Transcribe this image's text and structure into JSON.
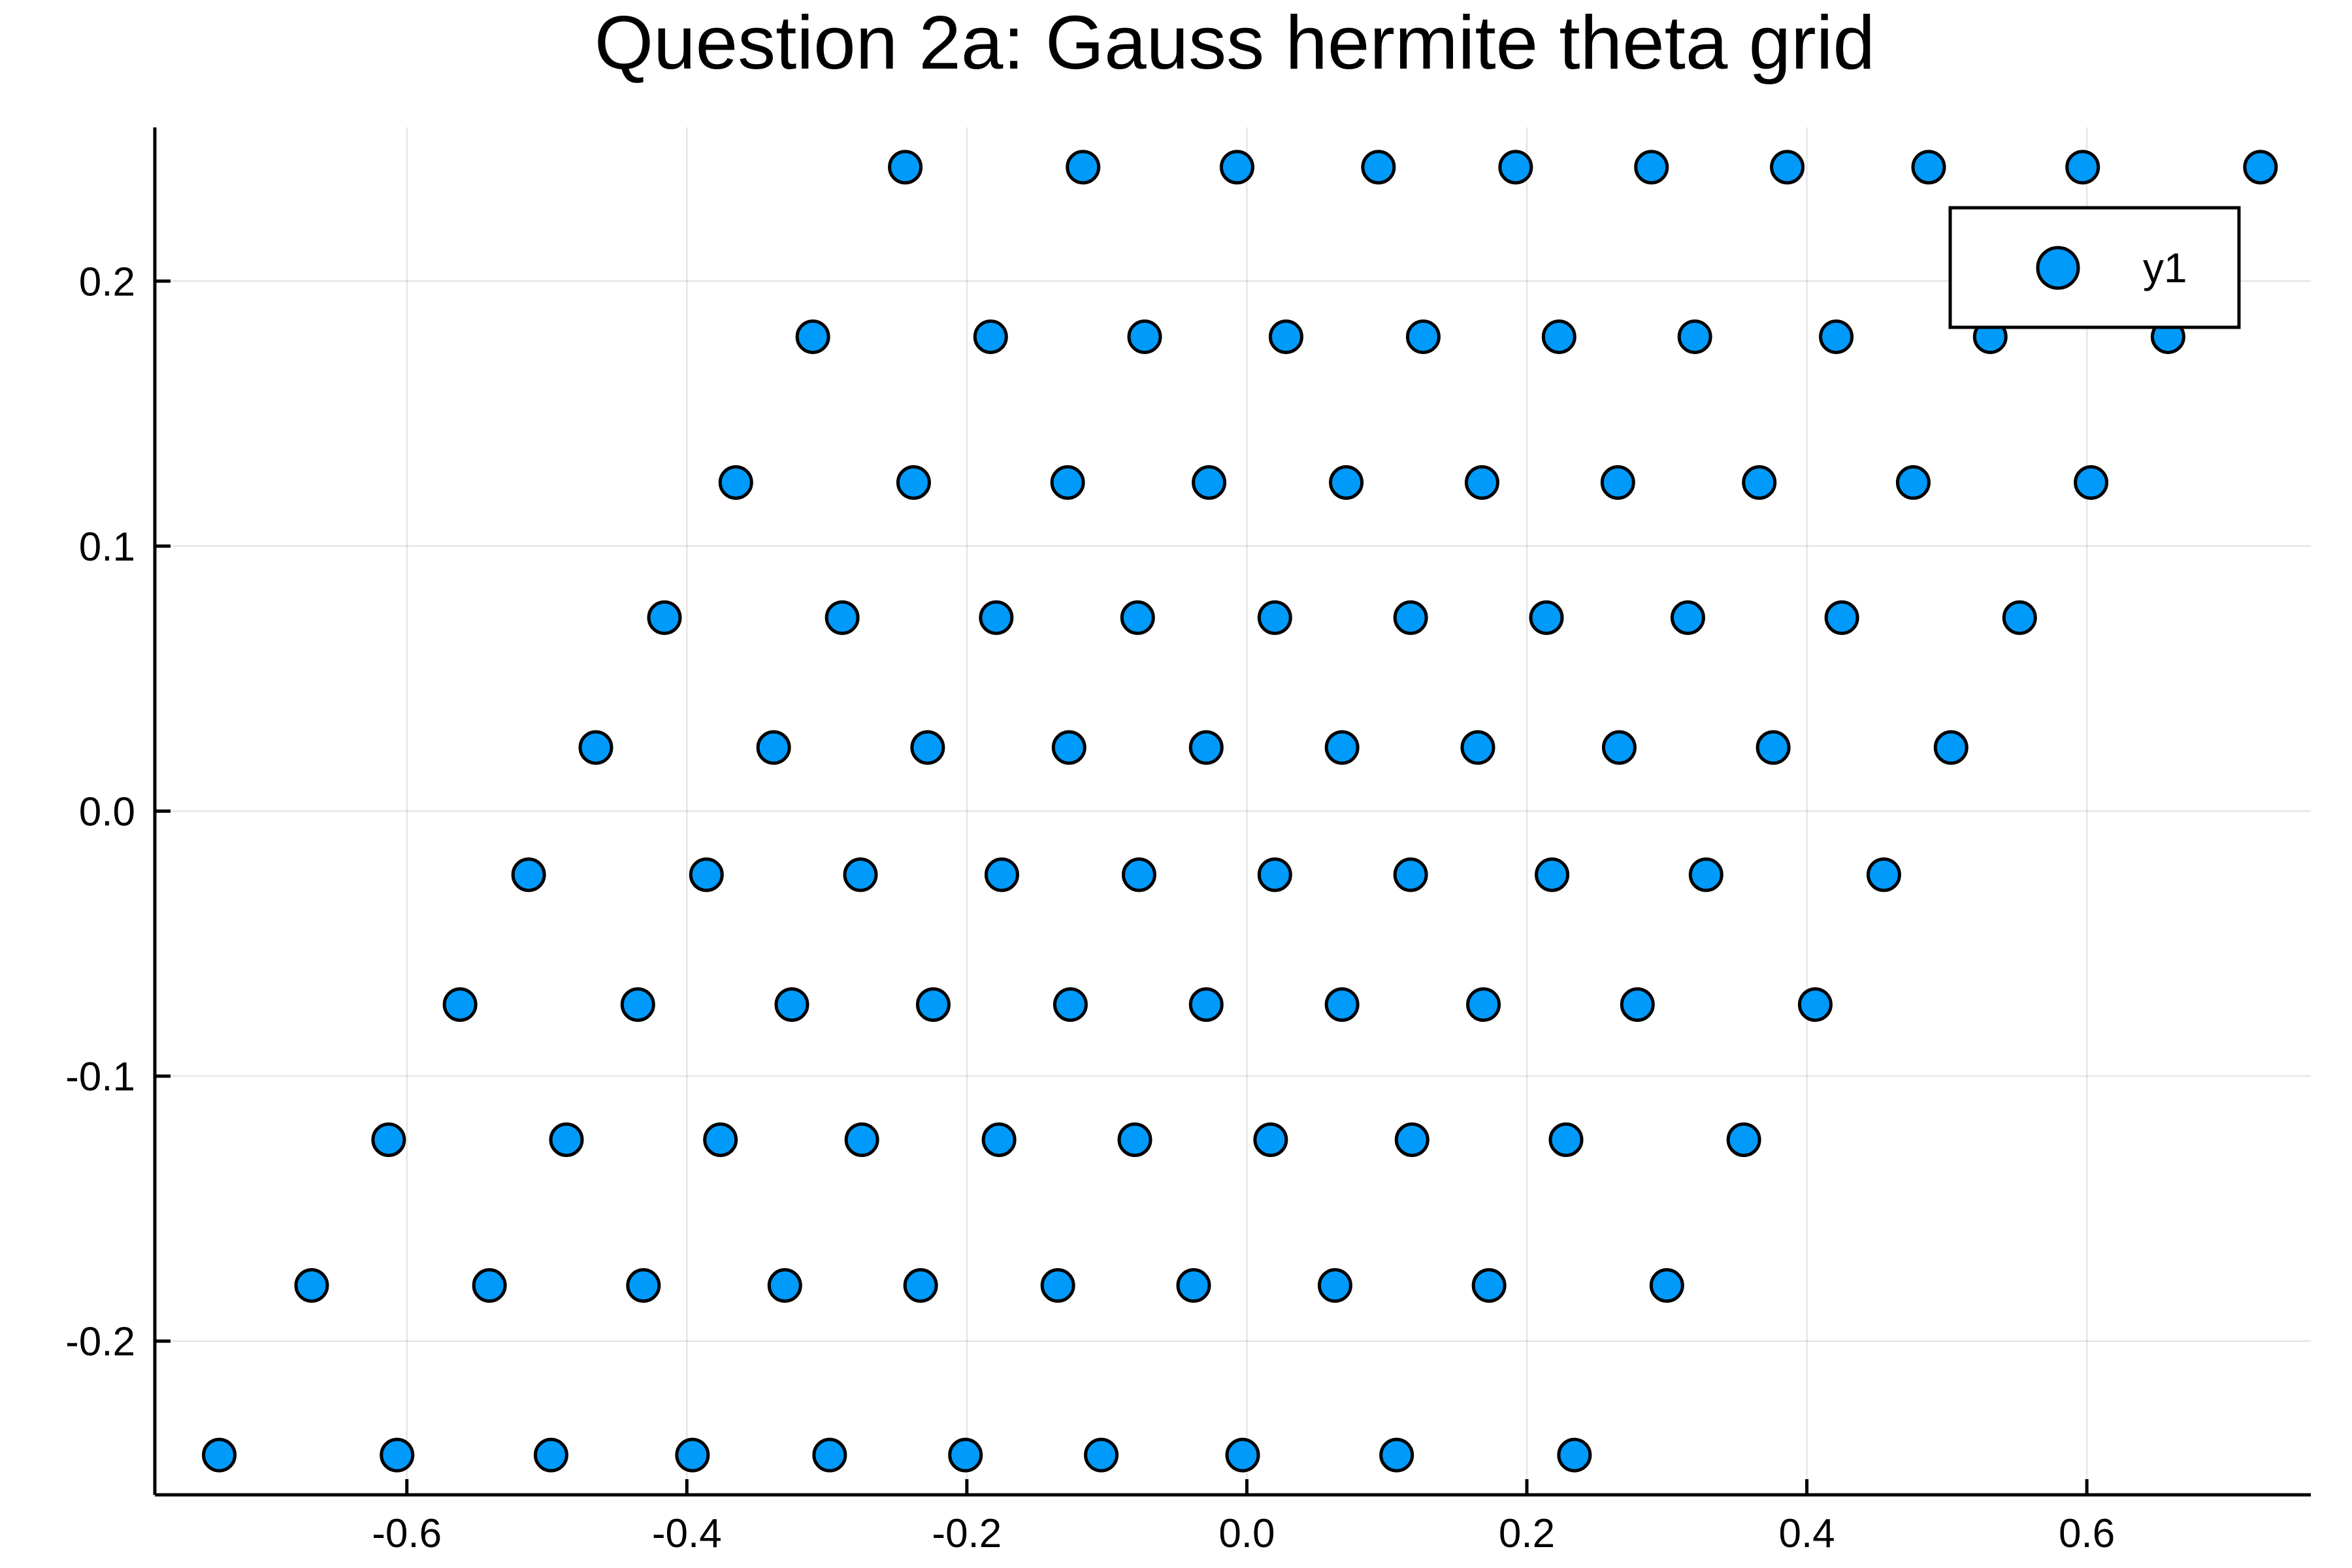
{
  "chart_data": {
    "type": "scatter",
    "title": "Question 2a: Gauss hermite theta grid",
    "xlabel": "",
    "ylabel": "",
    "xlim": [
      -0.78,
      0.76
    ],
    "ylim": [
      -0.258,
      0.258
    ],
    "xticks": [
      -0.6,
      -0.4,
      -0.2,
      0.0,
      0.2,
      0.4,
      0.6
    ],
    "xtick_labels": [
      "-0.6",
      "-0.4",
      "-0.2",
      "0.0",
      "0.2",
      "0.4",
      "0.6"
    ],
    "yticks": [
      -0.2,
      -0.1,
      0.0,
      0.1,
      0.2
    ],
    "ytick_labels": [
      "-0.2",
      "-0.1",
      "0.0",
      "0.1",
      "0.2"
    ],
    "grid": true,
    "legend_position": "top-right",
    "colors": {
      "marker": "#009AFA",
      "marker_edge": "#000000"
    },
    "series": [
      {
        "name": "y1",
        "points": [
          {
            "x": -0.734,
            "y": -0.243
          },
          {
            "x": -0.607,
            "y": -0.243
          },
          {
            "x": -0.497,
            "y": -0.243
          },
          {
            "x": -0.396,
            "y": -0.243
          },
          {
            "x": -0.298,
            "y": -0.243
          },
          {
            "x": -0.201,
            "y": -0.243
          },
          {
            "x": -0.104,
            "y": -0.243
          },
          {
            "x": -0.003,
            "y": -0.243
          },
          {
            "x": 0.107,
            "y": -0.243
          },
          {
            "x": 0.234,
            "y": -0.243
          },
          {
            "x": -0.668,
            "y": -0.179
          },
          {
            "x": -0.541,
            "y": -0.179
          },
          {
            "x": -0.431,
            "y": -0.179
          },
          {
            "x": -0.33,
            "y": -0.179
          },
          {
            "x": -0.233,
            "y": -0.179
          },
          {
            "x": -0.135,
            "y": -0.179
          },
          {
            "x": -0.038,
            "y": -0.179
          },
          {
            "x": 0.063,
            "y": -0.179
          },
          {
            "x": 0.173,
            "y": -0.179
          },
          {
            "x": 0.3,
            "y": -0.179
          },
          {
            "x": -0.613,
            "y": -0.124
          },
          {
            "x": -0.486,
            "y": -0.124
          },
          {
            "x": -0.376,
            "y": -0.124
          },
          {
            "x": -0.275,
            "y": -0.124
          },
          {
            "x": -0.177,
            "y": -0.124
          },
          {
            "x": -0.08,
            "y": -0.124
          },
          {
            "x": 0.017,
            "y": -0.124
          },
          {
            "x": 0.118,
            "y": -0.124
          },
          {
            "x": 0.228,
            "y": -0.124
          },
          {
            "x": 0.355,
            "y": -0.124
          },
          {
            "x": -0.562,
            "y": -0.073
          },
          {
            "x": -0.435,
            "y": -0.073
          },
          {
            "x": -0.325,
            "y": -0.073
          },
          {
            "x": -0.224,
            "y": -0.073
          },
          {
            "x": -0.126,
            "y": -0.073
          },
          {
            "x": -0.029,
            "y": -0.073
          },
          {
            "x": 0.068,
            "y": -0.073
          },
          {
            "x": 0.169,
            "y": -0.073
          },
          {
            "x": 0.279,
            "y": -0.073
          },
          {
            "x": 0.406,
            "y": -0.073
          },
          {
            "x": -0.513,
            "y": -0.024
          },
          {
            "x": -0.386,
            "y": -0.024
          },
          {
            "x": -0.276,
            "y": -0.024
          },
          {
            "x": -0.175,
            "y": -0.024
          },
          {
            "x": -0.077,
            "y": -0.024
          },
          {
            "x": 0.02,
            "y": -0.024
          },
          {
            "x": 0.117,
            "y": -0.024
          },
          {
            "x": 0.218,
            "y": -0.024
          },
          {
            "x": 0.328,
            "y": -0.024
          },
          {
            "x": 0.455,
            "y": -0.024
          },
          {
            "x": -0.465,
            "y": 0.024
          },
          {
            "x": -0.338,
            "y": 0.024
          },
          {
            "x": -0.228,
            "y": 0.024
          },
          {
            "x": -0.127,
            "y": 0.024
          },
          {
            "x": -0.029,
            "y": 0.024
          },
          {
            "x": 0.068,
            "y": 0.024
          },
          {
            "x": 0.165,
            "y": 0.024
          },
          {
            "x": 0.266,
            "y": 0.024
          },
          {
            "x": 0.376,
            "y": 0.024
          },
          {
            "x": 0.503,
            "y": 0.024
          },
          {
            "x": -0.416,
            "y": 0.073
          },
          {
            "x": -0.289,
            "y": 0.073
          },
          {
            "x": -0.179,
            "y": 0.073
          },
          {
            "x": -0.078,
            "y": 0.073
          },
          {
            "x": 0.02,
            "y": 0.073
          },
          {
            "x": 0.117,
            "y": 0.073
          },
          {
            "x": 0.214,
            "y": 0.073
          },
          {
            "x": 0.315,
            "y": 0.073
          },
          {
            "x": 0.425,
            "y": 0.073
          },
          {
            "x": 0.552,
            "y": 0.073
          },
          {
            "x": -0.365,
            "y": 0.124
          },
          {
            "x": -0.238,
            "y": 0.124
          },
          {
            "x": -0.128,
            "y": 0.124
          },
          {
            "x": -0.027,
            "y": 0.124
          },
          {
            "x": 0.071,
            "y": 0.124
          },
          {
            "x": 0.168,
            "y": 0.124
          },
          {
            "x": 0.265,
            "y": 0.124
          },
          {
            "x": 0.366,
            "y": 0.124
          },
          {
            "x": 0.476,
            "y": 0.124
          },
          {
            "x": 0.603,
            "y": 0.124
          },
          {
            "x": -0.31,
            "y": 0.179
          },
          {
            "x": -0.183,
            "y": 0.179
          },
          {
            "x": -0.073,
            "y": 0.179
          },
          {
            "x": 0.028,
            "y": 0.179
          },
          {
            "x": 0.126,
            "y": 0.179
          },
          {
            "x": 0.223,
            "y": 0.179
          },
          {
            "x": 0.32,
            "y": 0.179
          },
          {
            "x": 0.421,
            "y": 0.179
          },
          {
            "x": 0.531,
            "y": 0.179
          },
          {
            "x": 0.658,
            "y": 0.179
          },
          {
            "x": -0.244,
            "y": 0.243
          },
          {
            "x": -0.117,
            "y": 0.243
          },
          {
            "x": -0.007,
            "y": 0.243
          },
          {
            "x": 0.094,
            "y": 0.243
          },
          {
            "x": 0.192,
            "y": 0.243
          },
          {
            "x": 0.289,
            "y": 0.243
          },
          {
            "x": 0.386,
            "y": 0.243
          },
          {
            "x": 0.487,
            "y": 0.243
          },
          {
            "x": 0.597,
            "y": 0.243
          },
          {
            "x": 0.724,
            "y": 0.243
          }
        ]
      }
    ]
  }
}
